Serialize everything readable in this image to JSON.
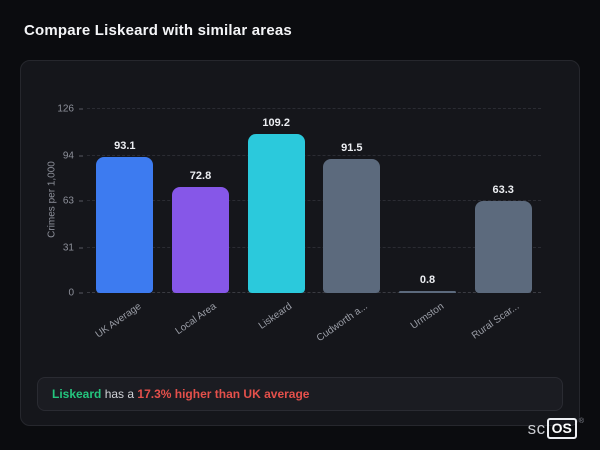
{
  "page": {
    "title": "Compare Liskeard with similar areas"
  },
  "chart_data": {
    "type": "bar",
    "title": "Compare Liskeard with similar areas",
    "xlabel": "",
    "ylabel": "Crimes per 1,000",
    "categories": [
      "UK Average",
      "Local Area",
      "Liskeard",
      "Cudworth a...",
      "Urmston",
      "Rural Scar..."
    ],
    "values": [
      93.1,
      72.8,
      109.2,
      91.5,
      0.8,
      63.3
    ],
    "value_labels": [
      "93.1",
      "72.8",
      "109.2",
      "91.5",
      "0.8",
      "63.3"
    ],
    "bar_colors": [
      "#3d7bf0",
      "#8657e8",
      "#2bc9dc",
      "#5c6a7d",
      "#5c6a7d",
      "#5c6a7d"
    ],
    "yticks": [
      126,
      94,
      63,
      31,
      0
    ],
    "ylim": [
      0,
      126
    ],
    "grid": "dashed horizontal",
    "legend": "none"
  },
  "summary": {
    "area": "Liskeard",
    "connector": " has a ",
    "highlight": "17.3% higher than UK average"
  },
  "logo": {
    "prefix": "sc",
    "boxed": "OS",
    "registered": "®"
  }
}
